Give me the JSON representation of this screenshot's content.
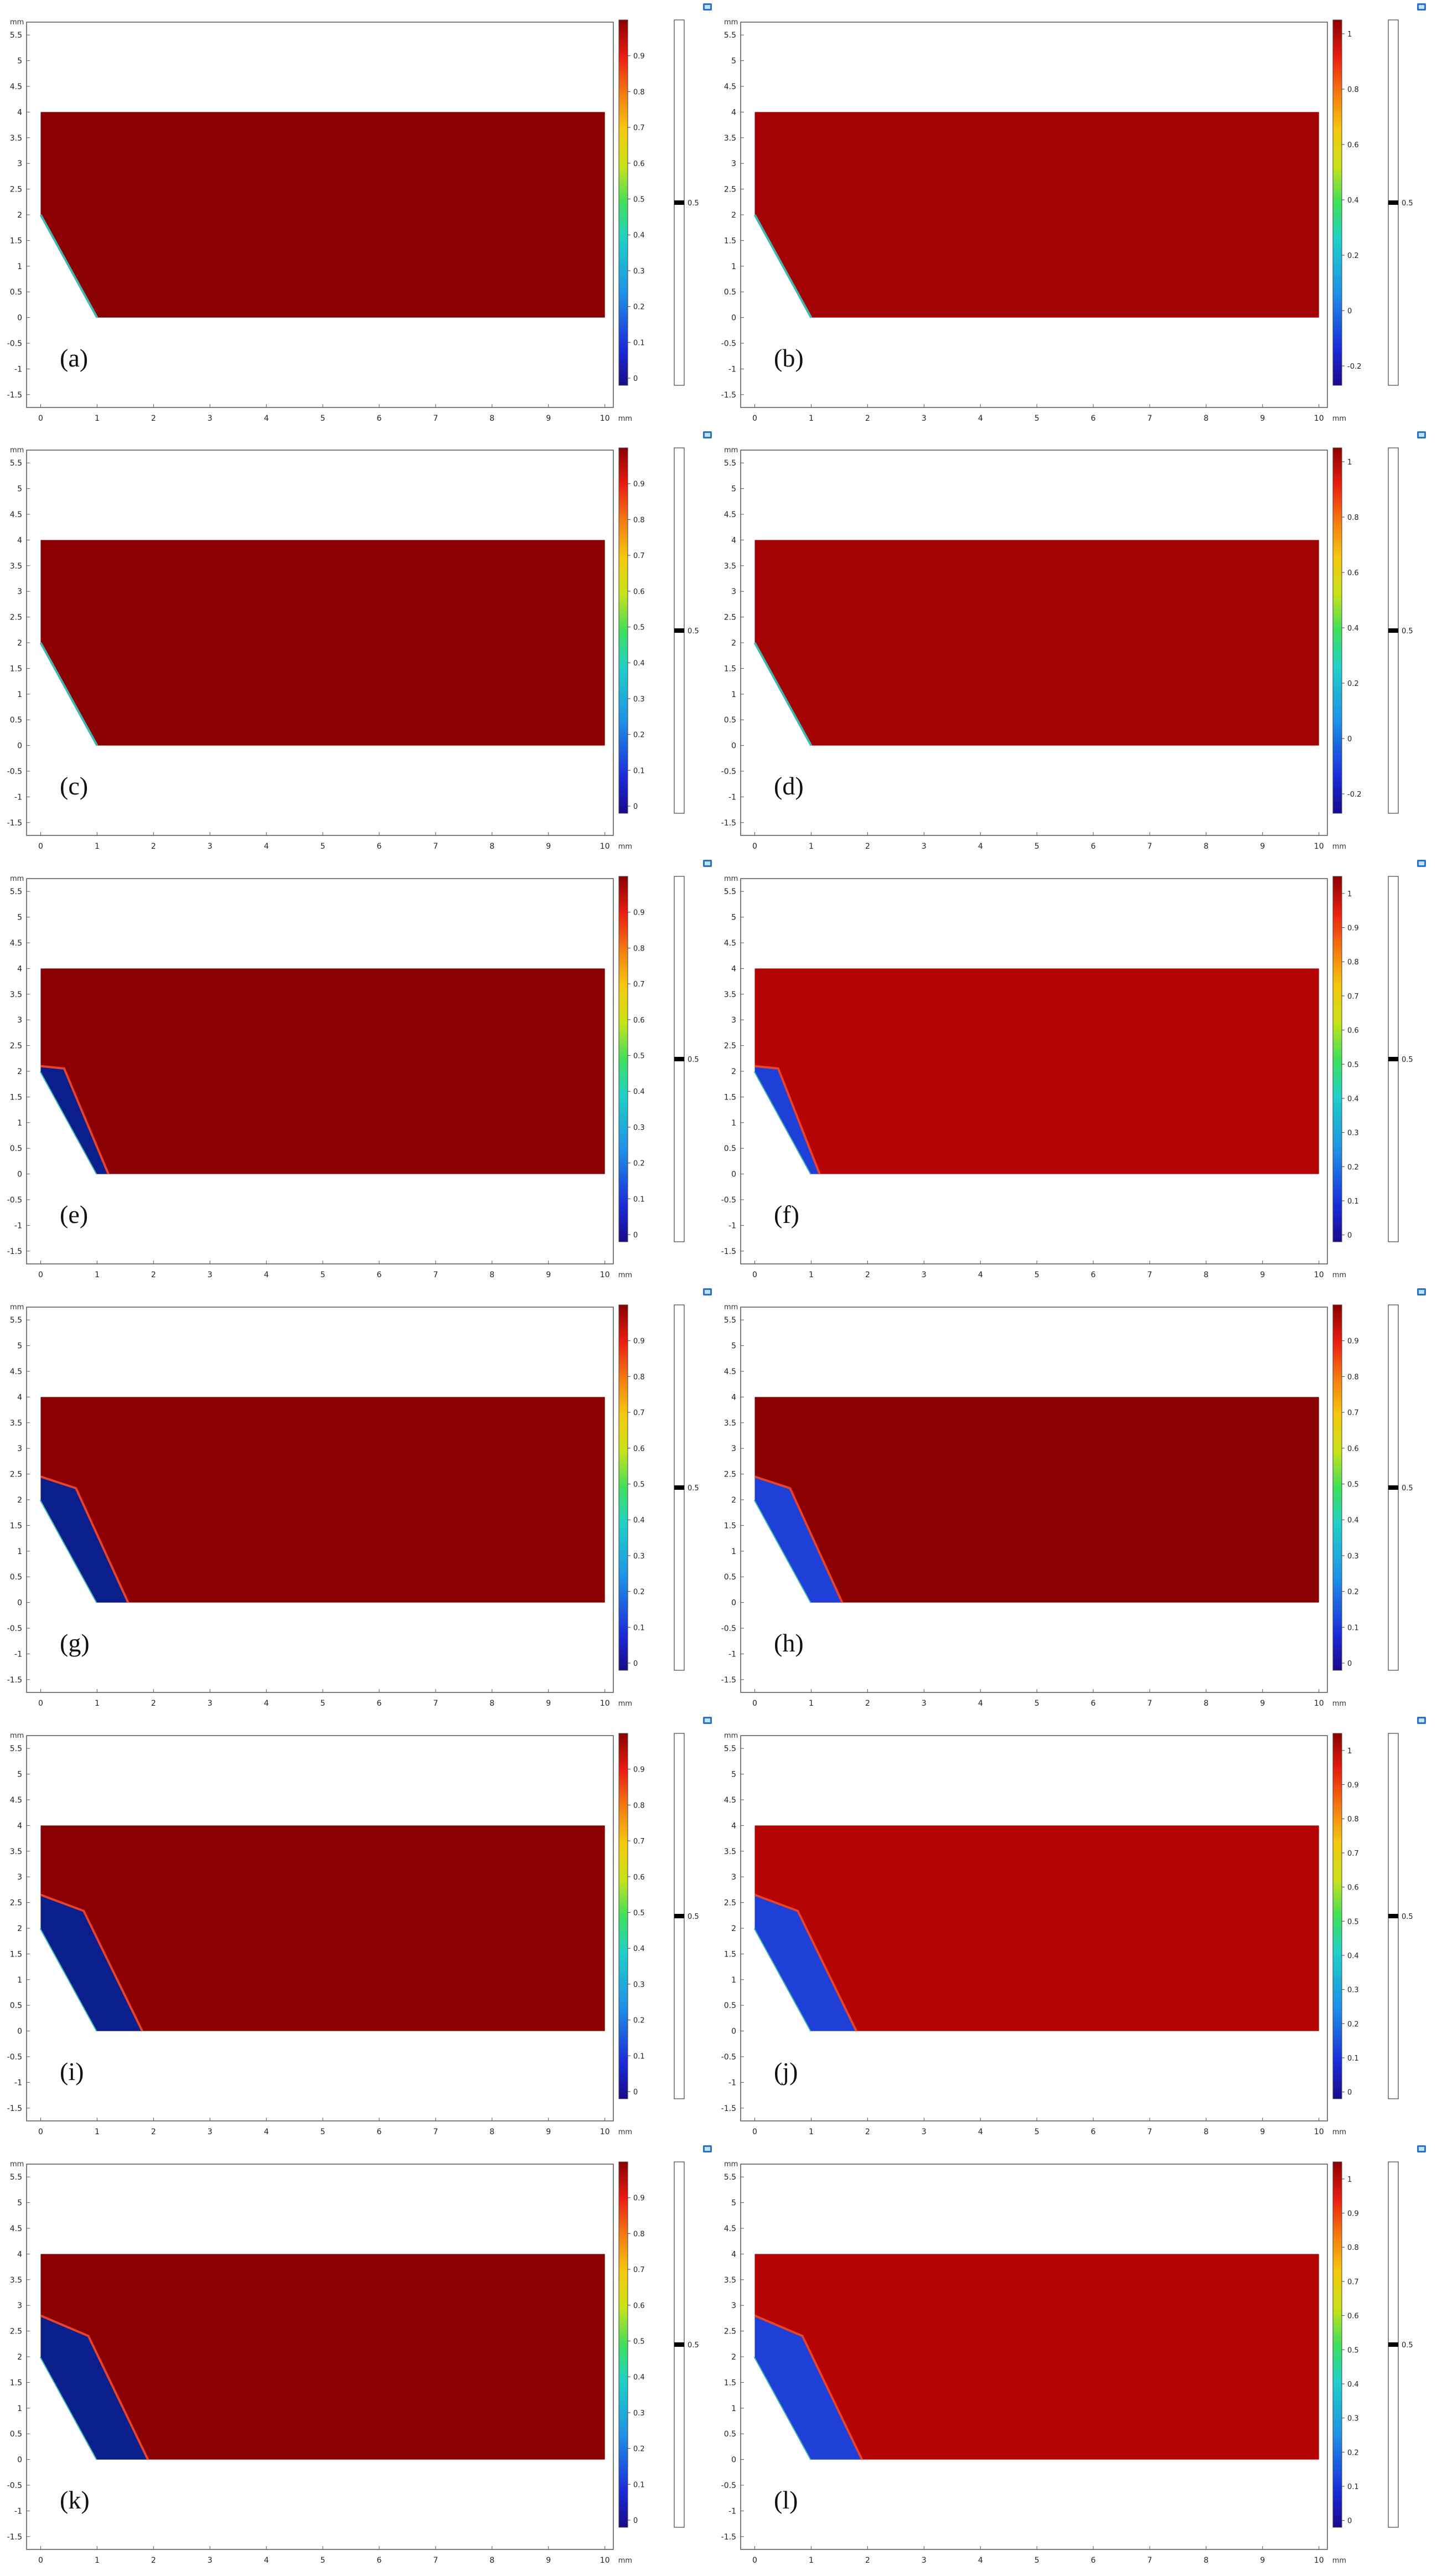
{
  "figure": {
    "axis_unit": "mm",
    "x_ticks": [
      "0",
      "1",
      "2",
      "3",
      "4",
      "5",
      "6",
      "7",
      "8",
      "9",
      "10"
    ],
    "y_ticks": [
      "5.5",
      "5",
      "4.5",
      "4",
      "3.5",
      "3",
      "2.5",
      "2",
      "1.5",
      "1",
      "0.5",
      "0",
      "-0.5",
      "-1",
      "-1.5"
    ],
    "colorbar_ticks_standard": [
      "0.9",
      "0.8",
      "0.7",
      "0.6",
      "0.5",
      "0.4",
      "0.3",
      "0.2",
      "0.1",
      "0"
    ],
    "colorbar_ticks_extended": [
      "1",
      "0.8",
      "0.6",
      "0.4",
      "0.2",
      "0",
      "-0.2"
    ],
    "colorbar_ticks_one": [
      "1",
      "0.9",
      "0.8",
      "0.7",
      "0.6",
      "0.5",
      "0.4",
      "0.3",
      "0.2",
      "0.1",
      "0"
    ],
    "level_marker_value": "0.5",
    "colors": {
      "domain_dark": "#8b0000",
      "domain_medium": "#a30303",
      "domain_bright": "#b40404",
      "blue_region": "#0b1f8c",
      "blue_region_light": "#1f40d6",
      "interface": "#e8422a",
      "edge_cyan": "#3fb7b0"
    }
  },
  "panels": [
    {
      "id": "a",
      "label": "(a)",
      "domain_color": "#8b0000",
      "colorbar": "standard",
      "extent": 0.0,
      "top_y": 2.0,
      "bottom_x": 1.0,
      "blue": "none"
    },
    {
      "id": "b",
      "label": "(b)",
      "domain_color": "#a30303",
      "colorbar": "extended",
      "extent": 0.0,
      "top_y": 2.0,
      "bottom_x": 1.0,
      "blue": "none"
    },
    {
      "id": "c",
      "label": "(c)",
      "domain_color": "#8b0000",
      "colorbar": "standard",
      "extent": 0.0,
      "top_y": 2.0,
      "bottom_x": 1.0,
      "blue": "none"
    },
    {
      "id": "d",
      "label": "(d)",
      "domain_color": "#a30303",
      "colorbar": "extended",
      "extent": 0.0,
      "top_y": 2.0,
      "bottom_x": 1.0,
      "blue": "none"
    },
    {
      "id": "e",
      "label": "(e)",
      "domain_color": "#8b0000",
      "colorbar": "standard",
      "extent": 0.12,
      "top_y": 2.1,
      "bottom_x": 1.2,
      "blue": "dark"
    },
    {
      "id": "f",
      "label": "(f)",
      "domain_color": "#b40404",
      "colorbar": "one",
      "extent": 0.12,
      "top_y": 2.1,
      "bottom_x": 1.15,
      "blue": "light"
    },
    {
      "id": "g",
      "label": "(g)",
      "domain_color": "#8b0000",
      "colorbar": "standard",
      "extent": 0.5,
      "top_y": 2.45,
      "bottom_x": 1.55,
      "blue": "dark"
    },
    {
      "id": "h",
      "label": "(h)",
      "domain_color": "#8b0000",
      "colorbar": "standard",
      "extent": 0.5,
      "top_y": 2.45,
      "bottom_x": 1.55,
      "blue": "light"
    },
    {
      "id": "i",
      "label": "(i)",
      "domain_color": "#8b0000",
      "colorbar": "standard",
      "extent": 0.75,
      "top_y": 2.65,
      "bottom_x": 1.8,
      "blue": "dark"
    },
    {
      "id": "j",
      "label": "(j)",
      "domain_color": "#b40404",
      "colorbar": "one",
      "extent": 0.75,
      "top_y": 2.65,
      "bottom_x": 1.8,
      "blue": "light"
    },
    {
      "id": "k",
      "label": "(k)",
      "domain_color": "#8b0000",
      "colorbar": "standard",
      "extent": 0.9,
      "top_y": 2.8,
      "bottom_x": 1.9,
      "blue": "dark"
    },
    {
      "id": "l",
      "label": "(l)",
      "domain_color": "#b40404",
      "colorbar": "one",
      "extent": 0.9,
      "top_y": 2.8,
      "bottom_x": 1.9,
      "blue": "light"
    }
  ]
}
